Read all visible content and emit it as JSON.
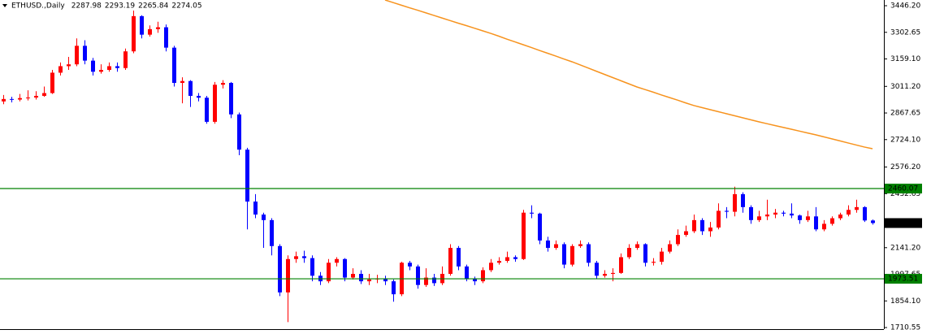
{
  "chart_data": {
    "type": "candlestick",
    "title": "ETHUSD.,Daily",
    "up_color": "#ff0000",
    "down_color": "#0000ff",
    "open": [
      2930,
      2943,
      2940,
      2948,
      2951,
      2960,
      2975,
      3085,
      3120,
      3130,
      3230,
      3150,
      3090,
      3100,
      3120,
      3110,
      3200,
      3390,
      3290,
      3320,
      3330,
      3220,
      3030,
      3040,
      2960,
      2950,
      2820,
      3020,
      3030,
      2860,
      2670,
      2390,
      2320,
      2290,
      2150,
      1900,
      2080,
      2095,
      2085,
      1990,
      1960,
      2060,
      2080,
      1980,
      2000,
      1960,
      1970,
      1975,
      1960,
      1890,
      2060,
      2040,
      1940,
      1980,
      1950,
      2000,
      2140,
      2040,
      1975,
      1960,
      2020,
      2060,
      2070,
      2090,
      2080,
      2330,
      2325,
      2180,
      2140,
      2160,
      2050,
      2150,
      2160,
      2060,
      1990,
      2000,
      2005,
      2090,
      2140,
      2160,
      2060,
      2065,
      2120,
      2160,
      2210,
      2230,
      2290,
      2230,
      2250,
      2340,
      2335,
      2430,
      2360,
      2290,
      2310,
      2320,
      2330,
      2325,
      2315,
      2290,
      2310,
      2240,
      2270,
      2300,
      2320,
      2345,
      2360,
      2287.98
    ],
    "high": [
      2965,
      2955,
      2970,
      2990,
      2985,
      3010,
      3100,
      3140,
      3170,
      3270,
      3260,
      3165,
      3130,
      3140,
      3140,
      3215,
      3420,
      3395,
      3340,
      3360,
      3345,
      3230,
      3060,
      3045,
      2975,
      2960,
      3035,
      3045,
      3035,
      2870,
      2680,
      2430,
      2330,
      2300,
      2160,
      2100,
      2120,
      2125,
      2100,
      2010,
      2080,
      2090,
      2085,
      2030,
      2020,
      2000,
      1995,
      1990,
      1970,
      2065,
      2070,
      2050,
      2030,
      2000,
      2040,
      2160,
      2150,
      2050,
      1985,
      2035,
      2080,
      2090,
      2120,
      2100,
      2345,
      2370,
      2330,
      2200,
      2180,
      2170,
      2160,
      2180,
      2170,
      2070,
      2020,
      2030,
      2110,
      2160,
      2175,
      2165,
      2085,
      2140,
      2180,
      2240,
      2260,
      2320,
      2300,
      2280,
      2380,
      2360,
      2470,
      2440,
      2370,
      2340,
      2400,
      2350,
      2340,
      2380,
      2320,
      2340,
      2360,
      2290,
      2310,
      2330,
      2370,
      2400,
      2365,
      2293.19
    ],
    "low": [
      2915,
      2925,
      2930,
      2935,
      2940,
      2955,
      2970,
      3070,
      3100,
      3120,
      3130,
      3070,
      3080,
      3090,
      3090,
      3100,
      3190,
      3270,
      3280,
      3300,
      3200,
      3010,
      2920,
      2900,
      2930,
      2810,
      2810,
      3000,
      2840,
      2640,
      2240,
      2300,
      2140,
      2100,
      1880,
      1740,
      2060,
      2060,
      1960,
      1940,
      1950,
      2040,
      1960,
      1970,
      1945,
      1940,
      1950,
      1940,
      1850,
      1880,
      2020,
      1920,
      1930,
      1935,
      1940,
      1990,
      2020,
      1960,
      1940,
      1950,
      2010,
      2050,
      2060,
      2065,
      2075,
      2300,
      2160,
      2120,
      2130,
      2030,
      2040,
      2140,
      2040,
      1975,
      1980,
      1960,
      2000,
      2080,
      2130,
      2040,
      2045,
      2050,
      2110,
      2150,
      2200,
      2220,
      2210,
      2200,
      2240,
      2300,
      2310,
      2330,
      2270,
      2280,
      2290,
      2300,
      2310,
      2300,
      2270,
      2280,
      2230,
      2230,
      2260,
      2290,
      2310,
      2330,
      2280,
      2265.84
    ],
    "close": [
      2943,
      2940,
      2948,
      2951,
      2960,
      2975,
      3085,
      3120,
      3130,
      3230,
      3150,
      3090,
      3100,
      3120,
      3110,
      3200,
      3390,
      3290,
      3320,
      3330,
      3220,
      3030,
      3040,
      2960,
      2950,
      2820,
      3020,
      3030,
      2860,
      2670,
      2390,
      2320,
      2290,
      2150,
      1900,
      2080,
      2095,
      2085,
      1990,
      1960,
      2060,
      2080,
      1980,
      2000,
      1960,
      1970,
      1975,
      1960,
      1890,
      2060,
      2040,
      1940,
      1980,
      1950,
      2000,
      2140,
      2040,
      1975,
      1960,
      2020,
      2060,
      2070,
      2090,
      2080,
      2330,
      2325,
      2180,
      2140,
      2160,
      2050,
      2150,
      2160,
      2060,
      1990,
      2000,
      2005,
      2090,
      2140,
      2160,
      2060,
      2065,
      2120,
      2160,
      2210,
      2230,
      2290,
      2230,
      2250,
      2340,
      2335,
      2430,
      2360,
      2290,
      2310,
      2320,
      2330,
      2325,
      2315,
      2290,
      2310,
      2240,
      2270,
      2300,
      2320,
      2345,
      2360,
      2287.98,
      2274.05
    ],
    "ma": {
      "color": "#f7931e",
      "values": [
        null,
        null,
        null,
        null,
        null,
        null,
        null,
        null,
        null,
        null,
        null,
        null,
        null,
        null,
        null,
        null,
        null,
        null,
        null,
        null,
        null,
        null,
        null,
        null,
        null,
        null,
        null,
        null,
        null,
        null,
        null,
        null,
        null,
        null,
        null,
        null,
        null,
        null,
        null,
        null,
        null,
        null,
        null,
        null,
        null,
        null,
        null,
        3477,
        3463,
        3449,
        3435,
        3422,
        3408,
        3394,
        3380,
        3366,
        3352,
        3339,
        3325,
        3311,
        3297,
        3282,
        3266,
        3251,
        3236,
        3221,
        3205,
        3190,
        3175,
        3159,
        3144,
        3127,
        3110,
        3093,
        3076,
        3059,
        3042,
        3025,
        3008,
        2994,
        2980,
        2965,
        2951,
        2937,
        2922,
        2908,
        2897,
        2886,
        2875,
        2864,
        2853,
        2842,
        2831,
        2820,
        2810,
        2800,
        2790,
        2780,
        2770,
        2760,
        2750,
        2739,
        2728,
        2717,
        2706,
        2695,
        2684,
        2675
      ]
    },
    "hlines": [
      2460.07,
      1973.51
    ],
    "hline_color": "#008000",
    "ylim": [
      1702,
      3477
    ],
    "yticks": [
      {
        "value": 3446.2,
        "label": "3446.20"
      },
      3302.65,
      {
        "value": 3159.1,
        "label": "3159.10"
      },
      {
        "value": 3011.2,
        "label": "3011.20"
      },
      2867.65,
      {
        "value": 2724.1,
        "label": "2724.10"
      },
      {
        "value": 2576.2,
        "label": "2576.20"
      },
      2432.65,
      {
        "value": 2141.2,
        "label": "2141.20"
      },
      1997.65,
      {
        "value": 1854.1,
        "label": "1854.10"
      },
      1710.55
    ]
  }
}
